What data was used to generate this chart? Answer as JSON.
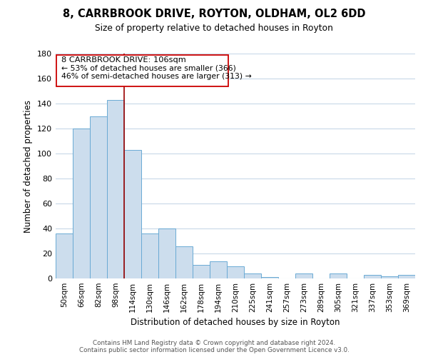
{
  "title": "8, CARRBROOK DRIVE, ROYTON, OLDHAM, OL2 6DD",
  "subtitle": "Size of property relative to detached houses in Royton",
  "xlabel": "Distribution of detached houses by size in Royton",
  "ylabel": "Number of detached properties",
  "bar_color": "#ccdded",
  "bar_edge_color": "#6aaad4",
  "background_color": "#ffffff",
  "grid_color": "#c8d8e8",
  "annotation_box_edge": "#cc0000",
  "annotation_line_color": "#990000",
  "categories": [
    "50sqm",
    "66sqm",
    "82sqm",
    "98sqm",
    "114sqm",
    "130sqm",
    "146sqm",
    "162sqm",
    "178sqm",
    "194sqm",
    "210sqm",
    "225sqm",
    "241sqm",
    "257sqm",
    "273sqm",
    "289sqm",
    "305sqm",
    "321sqm",
    "337sqm",
    "353sqm",
    "369sqm"
  ],
  "values": [
    36,
    120,
    130,
    143,
    103,
    36,
    40,
    26,
    11,
    14,
    10,
    4,
    1,
    0,
    4,
    0,
    4,
    0,
    3,
    2,
    3
  ],
  "property_size_label": "8 CARRBROOK DRIVE: 106sqm",
  "pct_smaller": 53,
  "n_smaller": 366,
  "pct_larger_semi": 46,
  "n_larger_semi": 313,
  "vline_x_index": 3.5,
  "ylim": [
    0,
    180
  ],
  "yticks": [
    0,
    20,
    40,
    60,
    80,
    100,
    120,
    140,
    160,
    180
  ],
  "footer_line1": "Contains HM Land Registry data © Crown copyright and database right 2024.",
  "footer_line2": "Contains public sector information licensed under the Open Government Licence v3.0."
}
